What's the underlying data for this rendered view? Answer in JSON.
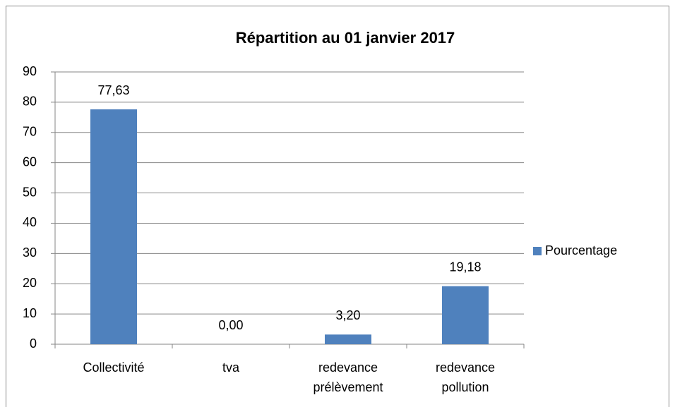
{
  "chart_data": {
    "type": "bar",
    "title": "Répartition au 01 janvier 2017",
    "categories": [
      "Collectivité",
      "tva",
      "redevance prélèvement",
      "redevance pollution"
    ],
    "series": [
      {
        "name": "Pourcentage",
        "color": "#4f81bd",
        "values": [
          77.63,
          0,
          3.2,
          19.18
        ],
        "value_labels": [
          "77,63",
          "0,00",
          "3,20",
          "19,18"
        ]
      }
    ],
    "ylim": [
      0,
      90
    ],
    "yticks": [
      0,
      10,
      20,
      30,
      40,
      50,
      60,
      70,
      80,
      90
    ],
    "grid": true,
    "legend": "right"
  }
}
